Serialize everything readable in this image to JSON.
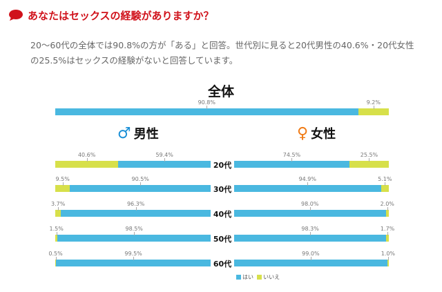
{
  "title": "あなたはセックスの経験がありますか？",
  "description": "20～60代の全体では90.8%の方が「ある」と回答。世代別に見ると20代男性の40.6%・20代女性の25.5%はセックスの経験がないと回答しています。",
  "colors": {
    "yes": "#4ab8e0",
    "no": "#d7e04a",
    "title": "#d0121b",
    "male": "#1a8fd6",
    "female": "#f07a14"
  },
  "chart_data": {
    "type": "bar",
    "stacked": true,
    "orientation": "horizontal",
    "legend": {
      "position": "bottom",
      "items": [
        "はい",
        "いいえ"
      ]
    },
    "overall": {
      "title": "全体",
      "yes": 90.8,
      "no": 9.2,
      "yes_label": "90.8%",
      "no_label": "9.2%"
    },
    "categories": [
      "20代",
      "30代",
      "40代",
      "50代",
      "60代"
    ],
    "male": {
      "label": "男性",
      "symbol": "♂",
      "yes": [
        59.4,
        90.5,
        96.3,
        98.5,
        99.5
      ],
      "no": [
        40.6,
        9.5,
        3.7,
        1.5,
        0.5
      ],
      "yes_labels": [
        "59.4%",
        "90.5%",
        "96.3%",
        "98.5%",
        "99.5%"
      ],
      "no_labels": [
        "40.6%",
        "9.5%",
        "3.7%",
        "1.5%",
        "0.5%"
      ]
    },
    "female": {
      "label": "女性",
      "symbol": "♀",
      "yes": [
        74.5,
        94.9,
        98.0,
        98.3,
        99.0
      ],
      "no": [
        25.5,
        5.1,
        2.0,
        1.7,
        1.0
      ],
      "yes_labels": [
        "74.5%",
        "94.9%",
        "98.0%",
        "98.3%",
        "99.0%"
      ],
      "no_labels": [
        "25.5%",
        "5.1%",
        "2.0%",
        "1.7%",
        "1.0%"
      ]
    }
  }
}
